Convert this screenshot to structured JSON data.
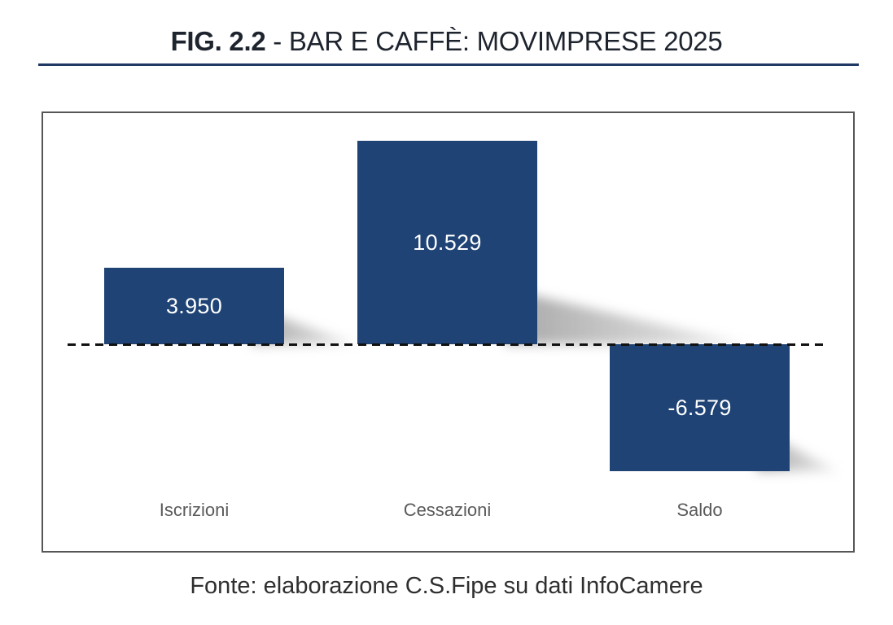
{
  "title": {
    "prefix": "FIG. 2.2",
    "rest": " - BAR E CAFFÈ: MOVIMPRESE 2025"
  },
  "footer": {
    "text": "Fonte: elaborazione C.S.Fipe su dati InfoCamere"
  },
  "chart_data": {
    "type": "bar",
    "title": "FIG. 2.2 - BAR E CAFFÈ: MOVIMPRESE 2025",
    "categories": [
      "Iscrizioni",
      "Cessazioni",
      "Saldo"
    ],
    "values": [
      3950,
      10529,
      -6579
    ],
    "value_labels": [
      "3.950",
      "10.529",
      "-6.579"
    ],
    "xlabel": "",
    "ylabel": "",
    "baseline": 0,
    "grid": false,
    "legend": null,
    "value_labels_position": "inside-center",
    "source": "Fonte: elaborazione C.S.Fipe su dati InfoCamere"
  },
  "colors": {
    "background": "#ffffff",
    "bar_fill": "#1e4374",
    "title_text": "#1e242e",
    "title_underline": "#1f3864",
    "frame_border": "#565656",
    "dashed_baseline": "#111111",
    "category_label": "#5a5a5a",
    "footer_text": "#2f2f2f",
    "value_label": "#ffffff"
  }
}
